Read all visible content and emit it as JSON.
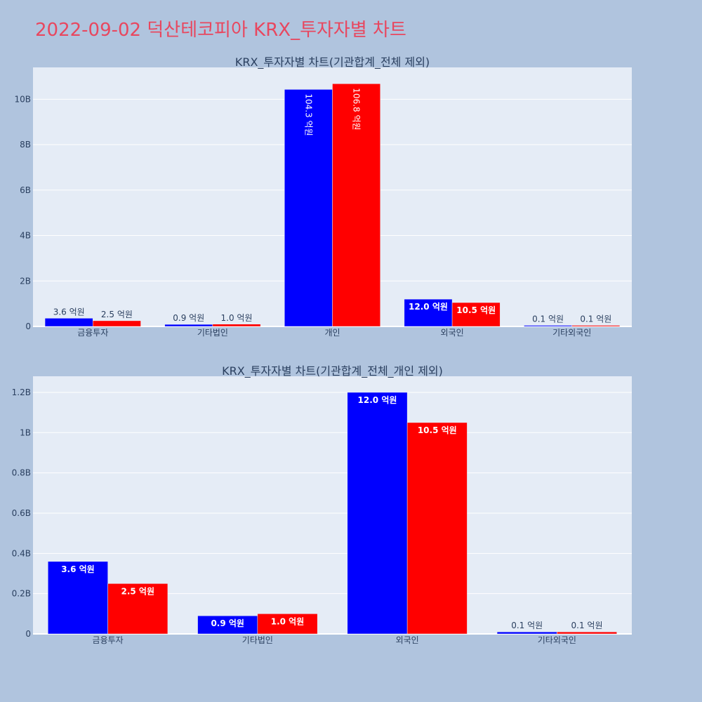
{
  "page": {
    "title": "2022-09-02 덕산테코피아 KRX_투자자별 차트"
  },
  "colors": {
    "page_background": "#b0c4de",
    "plot_background": "#e5ecf6",
    "grid": "#ffffff",
    "title_color": "#e8475f",
    "text": "#2a3f5f",
    "series_1": "#0000ff",
    "series_2": "#ff0000"
  },
  "chart_data": [
    {
      "type": "bar",
      "title": "KRX_투자자별 차트(기관합계_전체 제외)",
      "categories": [
        "금융투자",
        "기타법인",
        "개인",
        "외국인",
        "기타외국인"
      ],
      "series": [
        {
          "color": "#0000ff",
          "values": [
            360000000,
            90000000,
            10430000000,
            1200000000,
            10000000
          ],
          "labels": [
            "3.6 억원",
            "0.9 억원",
            "104.3 억원",
            "12.0 억원",
            "0.1 억원"
          ]
        },
        {
          "color": "#ff0000",
          "values": [
            250000000,
            100000000,
            10680000000,
            1050000000,
            10000000
          ],
          "labels": [
            "2.5 억원",
            "1.0 억원",
            "106.8 억원",
            "10.5 억원",
            "0.1 억원"
          ]
        }
      ],
      "yticks": [
        0,
        2000000000,
        4000000000,
        6000000000,
        8000000000,
        10000000000
      ],
      "ytick_labels": [
        "0",
        "2B",
        "4B",
        "6B",
        "8B",
        "10B"
      ],
      "ylim": [
        0,
        11400000000
      ],
      "grid": true
    },
    {
      "type": "bar",
      "title": "KRX_투자자별 차트(기관합계_전체_개인 제외)",
      "categories": [
        "금융투자",
        "기타법인",
        "외국인",
        "기타외국인"
      ],
      "series": [
        {
          "color": "#0000ff",
          "values": [
            360000000,
            90000000,
            1200000000,
            10000000
          ],
          "labels": [
            "3.6 억원",
            "0.9 억원",
            "12.0 억원",
            "0.1 억원"
          ]
        },
        {
          "color": "#ff0000",
          "values": [
            250000000,
            100000000,
            1050000000,
            10000000
          ],
          "labels": [
            "2.5 억원",
            "1.0 억원",
            "10.5 억원",
            "0.1 억원"
          ]
        }
      ],
      "yticks": [
        0,
        200000000,
        400000000,
        600000000,
        800000000,
        1000000000,
        1200000000
      ],
      "ytick_labels": [
        "0",
        "0.2B",
        "0.4B",
        "0.6B",
        "0.8B",
        "1B",
        "1.2B"
      ],
      "ylim": [
        0,
        1280000000
      ],
      "grid": true
    }
  ]
}
